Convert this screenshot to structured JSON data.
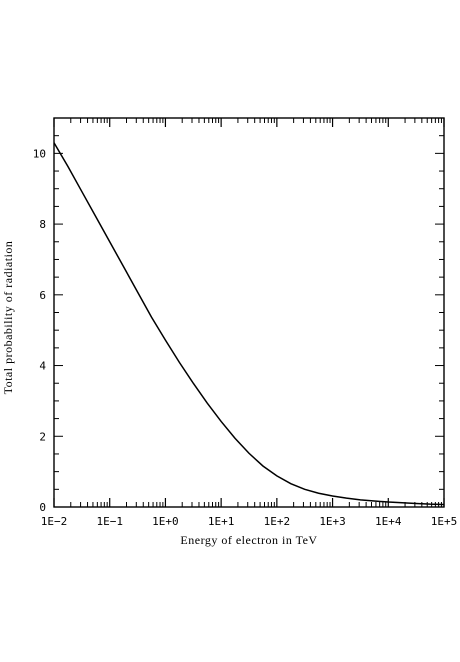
{
  "chart_data": {
    "type": "line",
    "title": "",
    "xlabel": "Energy of electron in TeV",
    "ylabel": "Total probability of radiation",
    "x_scale": "log",
    "xlim": [
      0.01,
      100000
    ],
    "ylim": [
      0,
      11
    ],
    "x_tick_labels": [
      "1E−2",
      "1E−1",
      "1E+0",
      "1E+1",
      "1E+2",
      "1E+3",
      "1E+4",
      "1E+5"
    ],
    "y_tick_labels": [
      "0",
      "2",
      "4",
      "6",
      "8",
      "10"
    ],
    "y_tick_values": [
      0,
      2,
      4,
      6,
      8,
      10
    ],
    "grid": false,
    "legend": "none",
    "series": [
      {
        "x": [
          0.01,
          0.0178,
          0.0316,
          0.0562,
          0.1,
          0.178,
          0.316,
          0.562,
          1,
          1.78,
          3.16,
          5.62,
          10,
          17.8,
          31.6,
          56.2,
          100,
          178,
          316,
          562,
          1000,
          1780,
          3160,
          5620,
          10000,
          17800,
          31600,
          56200,
          100000
        ],
        "y": [
          10.3,
          9.63,
          8.92,
          8.21,
          7.5,
          6.79,
          6.08,
          5.37,
          4.72,
          4.09,
          3.5,
          2.94,
          2.42,
          1.94,
          1.52,
          1.16,
          0.88,
          0.66,
          0.5,
          0.39,
          0.31,
          0.25,
          0.2,
          0.17,
          0.14,
          0.12,
          0.1,
          0.08,
          0.07
        ]
      }
    ]
  }
}
